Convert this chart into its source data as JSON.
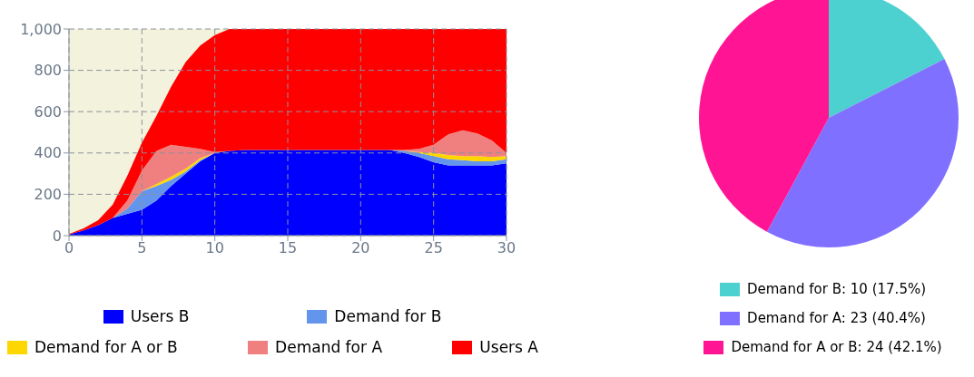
{
  "chart_data": [
    {
      "type": "area",
      "stacked": true,
      "x": [
        0,
        1,
        2,
        3,
        4,
        5,
        6,
        7,
        8,
        9,
        10,
        11,
        12,
        13,
        14,
        15,
        16,
        17,
        18,
        19,
        20,
        21,
        22,
        23,
        24,
        25,
        26,
        27,
        28,
        29,
        30
      ],
      "series": [
        {
          "name": "Users B",
          "color": "#0000ff",
          "values": [
            5,
            25,
            50,
            85,
            105,
            125,
            170,
            240,
            300,
            360,
            400,
            410,
            415,
            415,
            415,
            415,
            415,
            415,
            415,
            415,
            415,
            415,
            415,
            400,
            380,
            355,
            340,
            340,
            340,
            340,
            350
          ]
        },
        {
          "name": "Demand for B",
          "color": "#6495ed",
          "values": [
            null,
            null,
            null,
            0,
            25,
            90,
            70,
            30,
            10,
            5,
            0,
            null,
            null,
            null,
            null,
            null,
            null,
            null,
            null,
            null,
            null,
            null,
            0,
            10,
            20,
            30,
            30,
            25,
            20,
            20,
            20
          ]
        },
        {
          "name": "Demand for A or B",
          "color": "#ffd700",
          "values": [
            null,
            null,
            null,
            null,
            null,
            0,
            10,
            15,
            15,
            10,
            0,
            null,
            null,
            null,
            null,
            null,
            null,
            null,
            null,
            null,
            null,
            null,
            null,
            0,
            5,
            15,
            20,
            20,
            25,
            20,
            15
          ]
        },
        {
          "name": "Demand for A",
          "color": "#f08080",
          "values": [
            null,
            null,
            null,
            0,
            40,
            100,
            160,
            155,
            105,
            45,
            5,
            0,
            null,
            null,
            null,
            null,
            null,
            null,
            null,
            null,
            null,
            null,
            0,
            5,
            15,
            40,
            100,
            125,
            110,
            80,
            15
          ]
        },
        {
          "name": "Users A",
          "color": "#ff0000",
          "values": [
            3,
            10,
            25,
            65,
            120,
            135,
            170,
            280,
            410,
            500,
            565,
            590,
            585,
            585,
            585,
            585,
            585,
            585,
            585,
            585,
            585,
            585,
            585,
            585,
            580,
            560,
            510,
            490,
            505,
            540,
            600
          ]
        }
      ],
      "xlim": [
        0,
        30
      ],
      "xticks": [
        0,
        5,
        10,
        15,
        20,
        25,
        30
      ],
      "ylim": [
        0,
        1000
      ],
      "yticks": [
        0,
        200,
        400,
        600,
        800,
        {
          "value": 1000,
          "label": "1,000"
        }
      ],
      "grid": true,
      "legend": "bottom"
    },
    {
      "type": "pie",
      "categories": [
        "Demand for B: 10 (17.5%)",
        "Demand for A: 23 (40.4%)",
        "Demand for A or B: 24 (42.1%)"
      ],
      "values": [
        17.5,
        40.4,
        42.1
      ],
      "colors": [
        "#4dd0d0",
        "#8070ff",
        "#ff1493"
      ],
      "legend": "bottom"
    }
  ]
}
